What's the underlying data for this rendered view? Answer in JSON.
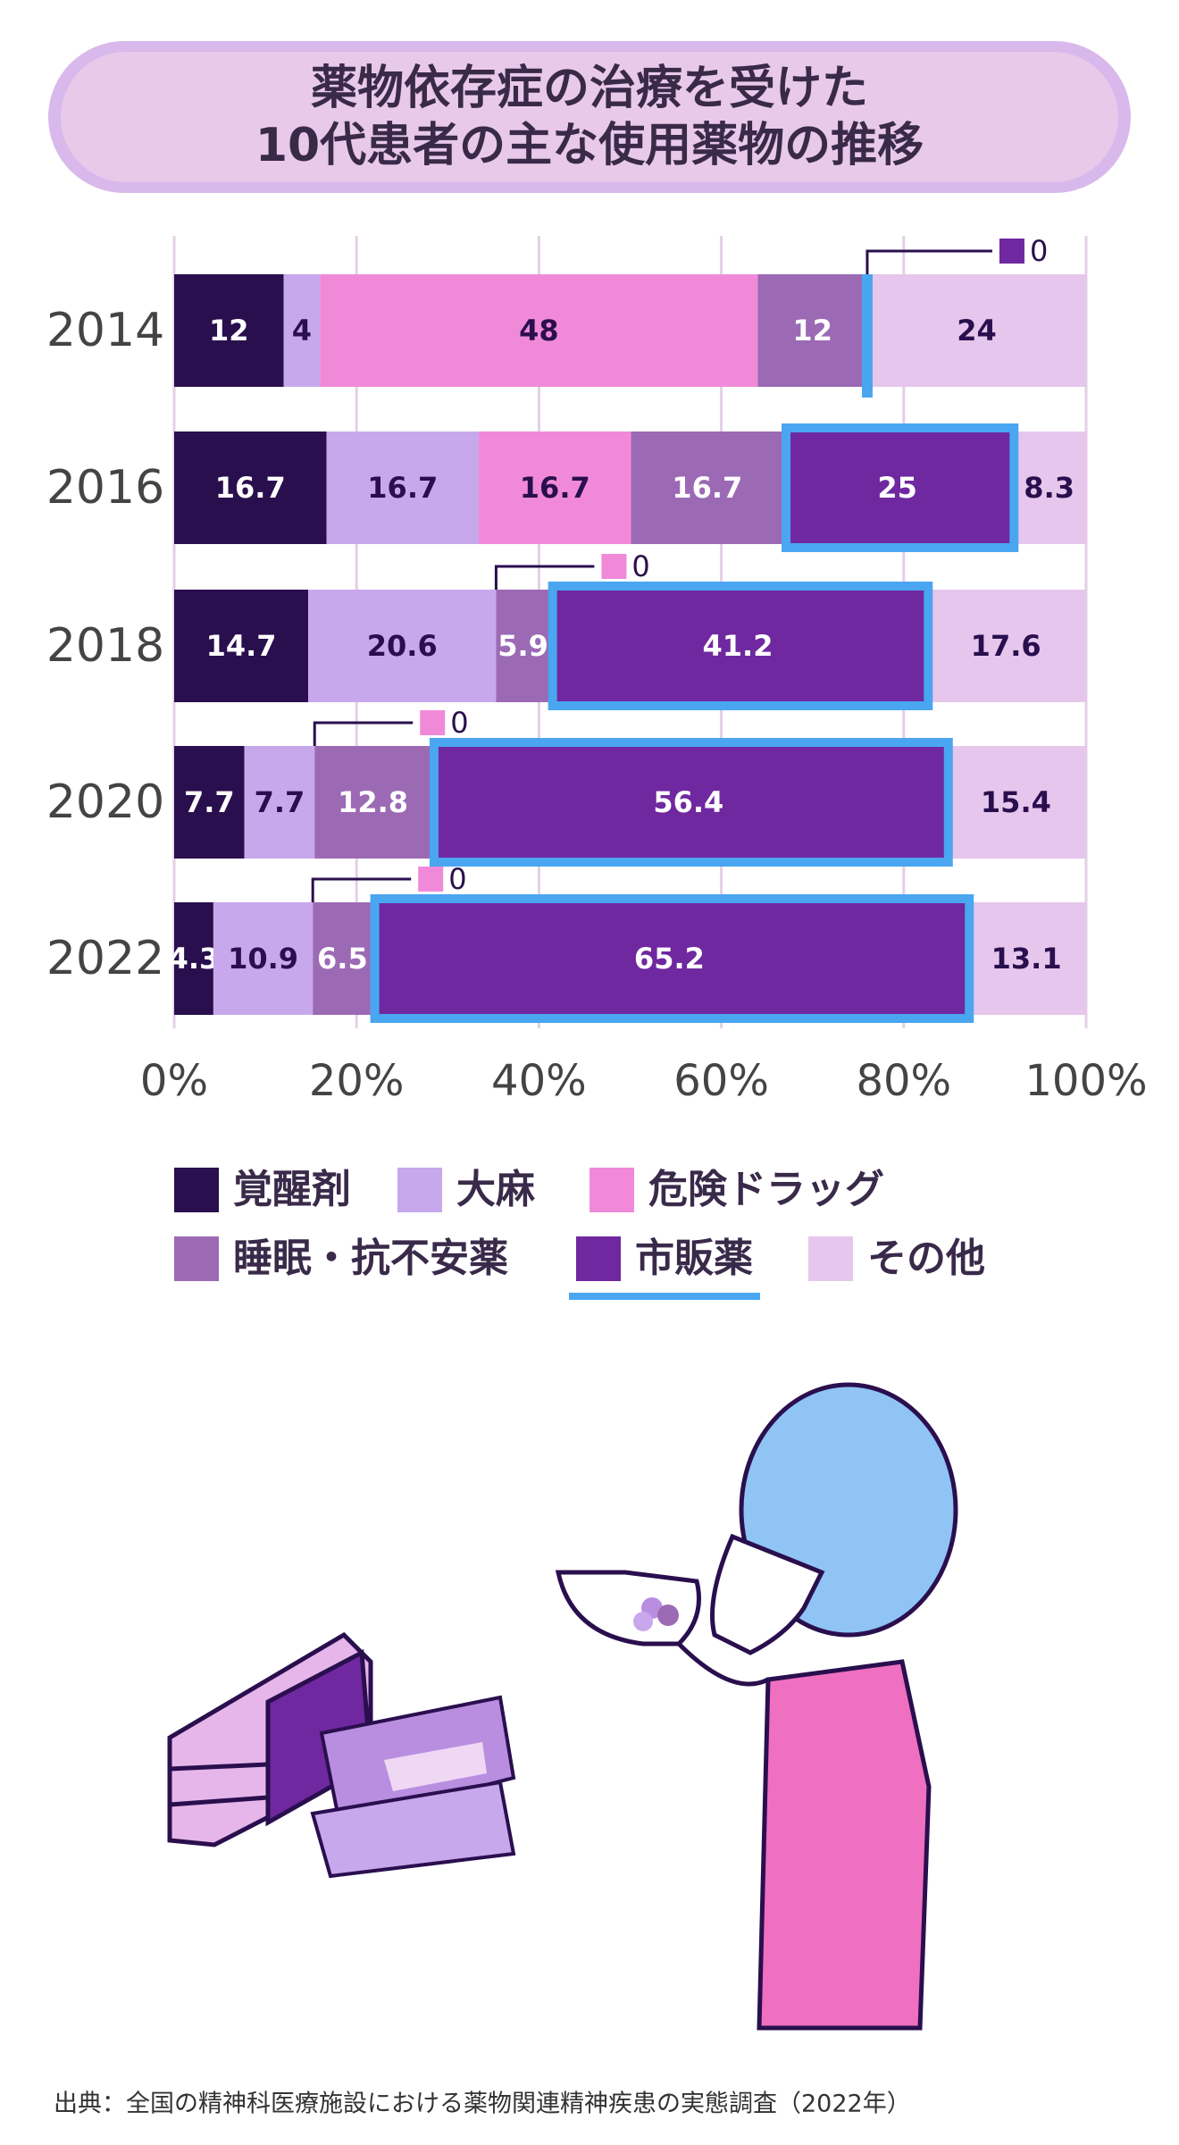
{
  "chart_data": {
    "type": "stacked-barh",
    "title": [
      "薬物依存症の治療を受けた",
      "10代患者の主な使用薬物の推移"
    ],
    "categories": [
      "2014",
      "2016",
      "2018",
      "2020",
      "2022"
    ],
    "series": [
      {
        "name": "覚醒剤",
        "color": "#2a0f4e",
        "values": [
          12,
          16.7,
          14.7,
          7.7,
          4.3
        ]
      },
      {
        "name": "大麻",
        "color": "#c8a8ec",
        "values": [
          4,
          16.7,
          20.6,
          7.7,
          10.9
        ]
      },
      {
        "name": "危険ドラッグ",
        "color": "#f08ad8",
        "values": [
          48,
          16.7,
          0,
          0,
          0
        ]
      },
      {
        "name": "睡眠・抗不安薬",
        "color": "#9c6ab4",
        "values": [
          12,
          16.7,
          5.9,
          12.8,
          6.5
        ]
      },
      {
        "name": "市販薬",
        "color": "#6f28a0",
        "values": [
          0,
          25,
          41.2,
          56.4,
          65.2
        ],
        "highlight": true
      },
      {
        "name": "その他",
        "color": "#e6c6ec",
        "values": [
          24,
          8.3,
          17.6,
          15.4,
          13.1
        ]
      }
    ],
    "highlight_color": "#4aa6f0",
    "xlim": [
      0,
      100
    ],
    "xticks": [
      {
        "value": 0,
        "label": "0%"
      },
      {
        "value": 20,
        "label": "20%"
      },
      {
        "value": 40,
        "label": "40%"
      },
      {
        "value": 60,
        "label": "60%"
      },
      {
        "value": 80,
        "label": "80%"
      },
      {
        "value": 100,
        "label": "100%"
      }
    ],
    "grid": true,
    "source": "出典：全国の精神科医療施設における薬物関連精神疾患の実態調査（2022年）"
  }
}
